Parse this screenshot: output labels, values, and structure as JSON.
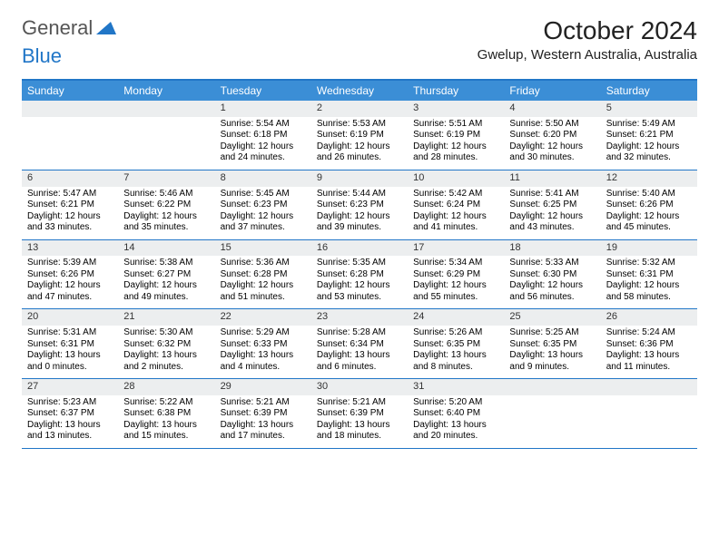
{
  "brand": {
    "part1": "General",
    "part2": "Blue"
  },
  "title": "October 2024",
  "location": "Gwelup, Western Australia, Australia",
  "colors": {
    "header_bg": "#3b8ed6",
    "border": "#2176c7",
    "daynum_bg": "#eceeef",
    "text": "#000000",
    "bg": "#ffffff"
  },
  "day_headers": [
    "Sunday",
    "Monday",
    "Tuesday",
    "Wednesday",
    "Thursday",
    "Friday",
    "Saturday"
  ],
  "weeks": [
    [
      null,
      null,
      {
        "n": "1",
        "sr": "Sunrise: 5:54 AM",
        "ss": "Sunset: 6:18 PM",
        "dl": "Daylight: 12 hours and 24 minutes."
      },
      {
        "n": "2",
        "sr": "Sunrise: 5:53 AM",
        "ss": "Sunset: 6:19 PM",
        "dl": "Daylight: 12 hours and 26 minutes."
      },
      {
        "n": "3",
        "sr": "Sunrise: 5:51 AM",
        "ss": "Sunset: 6:19 PM",
        "dl": "Daylight: 12 hours and 28 minutes."
      },
      {
        "n": "4",
        "sr": "Sunrise: 5:50 AM",
        "ss": "Sunset: 6:20 PM",
        "dl": "Daylight: 12 hours and 30 minutes."
      },
      {
        "n": "5",
        "sr": "Sunrise: 5:49 AM",
        "ss": "Sunset: 6:21 PM",
        "dl": "Daylight: 12 hours and 32 minutes."
      }
    ],
    [
      {
        "n": "6",
        "sr": "Sunrise: 5:47 AM",
        "ss": "Sunset: 6:21 PM",
        "dl": "Daylight: 12 hours and 33 minutes."
      },
      {
        "n": "7",
        "sr": "Sunrise: 5:46 AM",
        "ss": "Sunset: 6:22 PM",
        "dl": "Daylight: 12 hours and 35 minutes."
      },
      {
        "n": "8",
        "sr": "Sunrise: 5:45 AM",
        "ss": "Sunset: 6:23 PM",
        "dl": "Daylight: 12 hours and 37 minutes."
      },
      {
        "n": "9",
        "sr": "Sunrise: 5:44 AM",
        "ss": "Sunset: 6:23 PM",
        "dl": "Daylight: 12 hours and 39 minutes."
      },
      {
        "n": "10",
        "sr": "Sunrise: 5:42 AM",
        "ss": "Sunset: 6:24 PM",
        "dl": "Daylight: 12 hours and 41 minutes."
      },
      {
        "n": "11",
        "sr": "Sunrise: 5:41 AM",
        "ss": "Sunset: 6:25 PM",
        "dl": "Daylight: 12 hours and 43 minutes."
      },
      {
        "n": "12",
        "sr": "Sunrise: 5:40 AM",
        "ss": "Sunset: 6:26 PM",
        "dl": "Daylight: 12 hours and 45 minutes."
      }
    ],
    [
      {
        "n": "13",
        "sr": "Sunrise: 5:39 AM",
        "ss": "Sunset: 6:26 PM",
        "dl": "Daylight: 12 hours and 47 minutes."
      },
      {
        "n": "14",
        "sr": "Sunrise: 5:38 AM",
        "ss": "Sunset: 6:27 PM",
        "dl": "Daylight: 12 hours and 49 minutes."
      },
      {
        "n": "15",
        "sr": "Sunrise: 5:36 AM",
        "ss": "Sunset: 6:28 PM",
        "dl": "Daylight: 12 hours and 51 minutes."
      },
      {
        "n": "16",
        "sr": "Sunrise: 5:35 AM",
        "ss": "Sunset: 6:28 PM",
        "dl": "Daylight: 12 hours and 53 minutes."
      },
      {
        "n": "17",
        "sr": "Sunrise: 5:34 AM",
        "ss": "Sunset: 6:29 PM",
        "dl": "Daylight: 12 hours and 55 minutes."
      },
      {
        "n": "18",
        "sr": "Sunrise: 5:33 AM",
        "ss": "Sunset: 6:30 PM",
        "dl": "Daylight: 12 hours and 56 minutes."
      },
      {
        "n": "19",
        "sr": "Sunrise: 5:32 AM",
        "ss": "Sunset: 6:31 PM",
        "dl": "Daylight: 12 hours and 58 minutes."
      }
    ],
    [
      {
        "n": "20",
        "sr": "Sunrise: 5:31 AM",
        "ss": "Sunset: 6:31 PM",
        "dl": "Daylight: 13 hours and 0 minutes."
      },
      {
        "n": "21",
        "sr": "Sunrise: 5:30 AM",
        "ss": "Sunset: 6:32 PM",
        "dl": "Daylight: 13 hours and 2 minutes."
      },
      {
        "n": "22",
        "sr": "Sunrise: 5:29 AM",
        "ss": "Sunset: 6:33 PM",
        "dl": "Daylight: 13 hours and 4 minutes."
      },
      {
        "n": "23",
        "sr": "Sunrise: 5:28 AM",
        "ss": "Sunset: 6:34 PM",
        "dl": "Daylight: 13 hours and 6 minutes."
      },
      {
        "n": "24",
        "sr": "Sunrise: 5:26 AM",
        "ss": "Sunset: 6:35 PM",
        "dl": "Daylight: 13 hours and 8 minutes."
      },
      {
        "n": "25",
        "sr": "Sunrise: 5:25 AM",
        "ss": "Sunset: 6:35 PM",
        "dl": "Daylight: 13 hours and 9 minutes."
      },
      {
        "n": "26",
        "sr": "Sunrise: 5:24 AM",
        "ss": "Sunset: 6:36 PM",
        "dl": "Daylight: 13 hours and 11 minutes."
      }
    ],
    [
      {
        "n": "27",
        "sr": "Sunrise: 5:23 AM",
        "ss": "Sunset: 6:37 PM",
        "dl": "Daylight: 13 hours and 13 minutes."
      },
      {
        "n": "28",
        "sr": "Sunrise: 5:22 AM",
        "ss": "Sunset: 6:38 PM",
        "dl": "Daylight: 13 hours and 15 minutes."
      },
      {
        "n": "29",
        "sr": "Sunrise: 5:21 AM",
        "ss": "Sunset: 6:39 PM",
        "dl": "Daylight: 13 hours and 17 minutes."
      },
      {
        "n": "30",
        "sr": "Sunrise: 5:21 AM",
        "ss": "Sunset: 6:39 PM",
        "dl": "Daylight: 13 hours and 18 minutes."
      },
      {
        "n": "31",
        "sr": "Sunrise: 5:20 AM",
        "ss": "Sunset: 6:40 PM",
        "dl": "Daylight: 13 hours and 20 minutes."
      },
      null,
      null
    ]
  ]
}
